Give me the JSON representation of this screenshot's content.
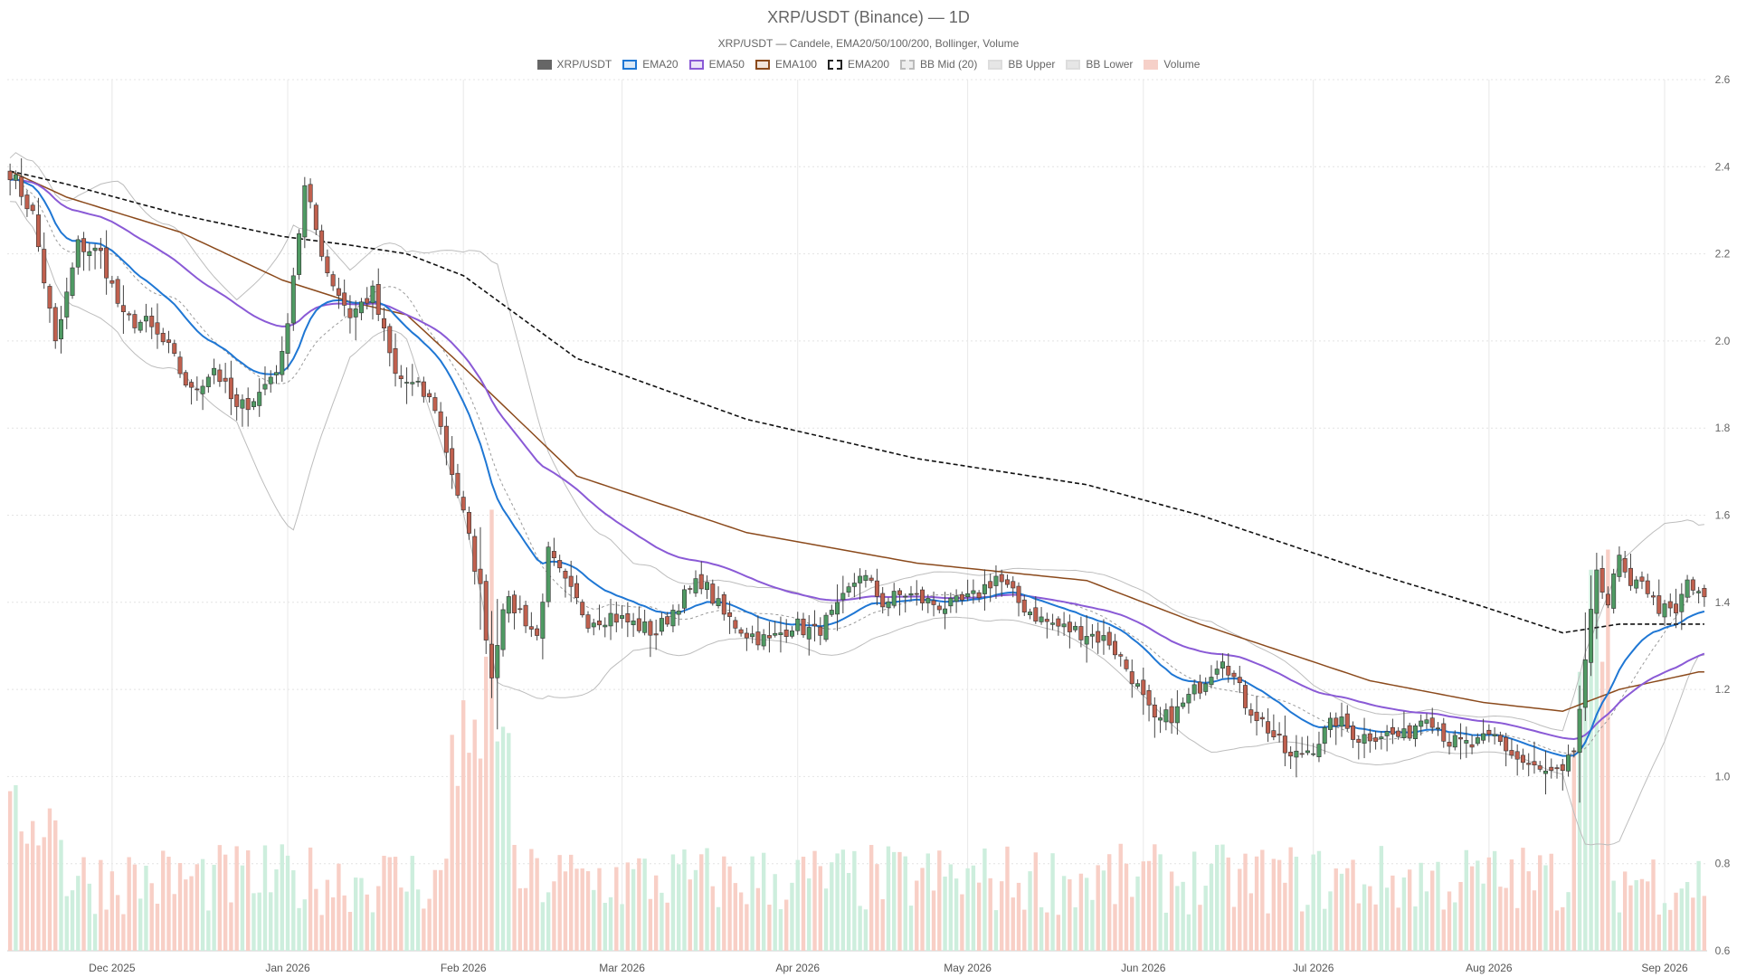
{
  "chart_data": {
    "type": "candlestick",
    "title": "XRP/USDT (Binance) — 1D",
    "subtitle": "XRP/USDT — Candele, EMA20/50/100/200, Bollinger, Volume",
    "legend": [
      {
        "label": "XRP/USDT",
        "color": "#666666",
        "fill": "#666666",
        "dash": false
      },
      {
        "label": "EMA20",
        "color": "#1f77d4",
        "fill": "#dbe9f7",
        "dash": false
      },
      {
        "label": "EMA50",
        "color": "#8a5ad6",
        "fill": "#ece3f8",
        "dash": false
      },
      {
        "label": "EMA100",
        "color": "#8b4a1c",
        "fill": "#f2e4da",
        "dash": false
      },
      {
        "label": "EMA200",
        "color": "#222222",
        "fill": "#ffffff",
        "dash": true
      },
      {
        "label": "BB Mid (20)",
        "color": "#bbbbbb",
        "fill": "#eeeeee",
        "dash": true
      },
      {
        "label": "BB Upper",
        "color": "#dddddd",
        "fill": "#e6e6e6",
        "dash": false
      },
      {
        "label": "BB Lower",
        "color": "#dddddd",
        "fill": "#e6e6e6",
        "dash": false
      },
      {
        "label": "Volume",
        "color": "#f6d0c8",
        "fill": "#f6d0c8",
        "dash": false
      }
    ],
    "x_ticks": [
      "Dec 2025",
      "Jan 2026",
      "Feb 2026",
      "Mar 2026",
      "Apr 2026",
      "May 2026",
      "Jun 2026",
      "Jul 2026",
      "Aug 2026",
      "Sep 2026"
    ],
    "x_tick_days": [
      18,
      49,
      80,
      108,
      139,
      169,
      200,
      230,
      261,
      292
    ],
    "y_ticks": [
      "2.6",
      "2.4",
      "2.2",
      "2.0",
      "1.8",
      "1.6",
      "1.4",
      "1.2",
      "1.0",
      "0.8",
      "0.6"
    ],
    "ylim": [
      0.6,
      2.6
    ],
    "grid": true,
    "candle_anchors": [
      [
        0,
        2.39
      ],
      [
        4,
        2.29
      ],
      [
        8,
        1.99
      ],
      [
        12,
        2.22
      ],
      [
        16,
        2.2
      ],
      [
        20,
        2.05
      ],
      [
        24,
        2.04
      ],
      [
        28,
        1.98
      ],
      [
        32,
        1.88
      ],
      [
        36,
        1.94
      ],
      [
        40,
        1.84
      ],
      [
        44,
        1.88
      ],
      [
        48,
        1.96
      ],
      [
        52,
        2.35
      ],
      [
        56,
        2.16
      ],
      [
        60,
        2.06
      ],
      [
        64,
        2.11
      ],
      [
        68,
        1.92
      ],
      [
        72,
        1.89
      ],
      [
        75,
        1.85
      ],
      [
        78,
        1.7
      ],
      [
        80,
        1.6
      ],
      [
        83,
        1.43
      ],
      [
        85,
        1.23
      ],
      [
        87,
        1.4
      ],
      [
        90,
        1.38
      ],
      [
        93,
        1.32
      ],
      [
        95,
        1.51
      ],
      [
        98,
        1.44
      ],
      [
        102,
        1.36
      ],
      [
        106,
        1.37
      ],
      [
        110,
        1.35
      ],
      [
        114,
        1.33
      ],
      [
        118,
        1.4
      ],
      [
        122,
        1.45
      ],
      [
        126,
        1.37
      ],
      [
        130,
        1.33
      ],
      [
        134,
        1.31
      ],
      [
        138,
        1.35
      ],
      [
        142,
        1.33
      ],
      [
        146,
        1.38
      ],
      [
        150,
        1.47
      ],
      [
        154,
        1.4
      ],
      [
        158,
        1.42
      ],
      [
        162,
        1.4
      ],
      [
        166,
        1.39
      ],
      [
        170,
        1.41
      ],
      [
        174,
        1.46
      ],
      [
        178,
        1.4
      ],
      [
        182,
        1.36
      ],
      [
        186,
        1.34
      ],
      [
        190,
        1.33
      ],
      [
        194,
        1.31
      ],
      [
        198,
        1.23
      ],
      [
        202,
        1.12
      ],
      [
        206,
        1.15
      ],
      [
        210,
        1.21
      ],
      [
        214,
        1.28
      ],
      [
        218,
        1.17
      ],
      [
        222,
        1.11
      ],
      [
        226,
        1.04
      ],
      [
        230,
        1.07
      ],
      [
        234,
        1.13
      ],
      [
        238,
        1.09
      ],
      [
        242,
        1.1
      ],
      [
        246,
        1.09
      ],
      [
        250,
        1.15
      ],
      [
        254,
        1.08
      ],
      [
        258,
        1.07
      ],
      [
        262,
        1.09
      ],
      [
        266,
        1.04
      ],
      [
        270,
        1.01
      ],
      [
        274,
        1.0
      ],
      [
        276,
        1.06
      ],
      [
        278,
        1.25
      ],
      [
        280,
        1.48
      ],
      [
        282,
        1.4
      ],
      [
        284,
        1.5
      ],
      [
        286,
        1.42
      ],
      [
        288,
        1.46
      ],
      [
        290,
        1.4
      ],
      [
        292,
        1.38
      ],
      [
        294,
        1.37
      ],
      [
        296,
        1.45
      ],
      [
        298,
        1.41
      ]
    ],
    "ema200_anchors": [
      [
        0,
        2.39
      ],
      [
        10,
        2.36
      ],
      [
        30,
        2.29
      ],
      [
        48,
        2.24
      ],
      [
        60,
        2.22
      ],
      [
        70,
        2.2
      ],
      [
        80,
        2.15
      ],
      [
        100,
        1.96
      ],
      [
        130,
        1.82
      ],
      [
        160,
        1.73
      ],
      [
        190,
        1.67
      ],
      [
        210,
        1.6
      ],
      [
        240,
        1.47
      ],
      [
        260,
        1.39
      ],
      [
        274,
        1.33
      ],
      [
        284,
        1.35
      ],
      [
        298,
        1.35
      ]
    ],
    "ema100_anchors": [
      [
        0,
        2.39
      ],
      [
        10,
        2.33
      ],
      [
        30,
        2.25
      ],
      [
        48,
        2.14
      ],
      [
        60,
        2.09
      ],
      [
        70,
        2.06
      ],
      [
        80,
        1.94
      ],
      [
        100,
        1.69
      ],
      [
        130,
        1.56
      ],
      [
        160,
        1.49
      ],
      [
        190,
        1.45
      ],
      [
        210,
        1.35
      ],
      [
        240,
        1.22
      ],
      [
        260,
        1.17
      ],
      [
        274,
        1.15
      ],
      [
        284,
        1.2
      ],
      [
        298,
        1.24
      ]
    ],
    "bb_width_anchors": [
      [
        0,
        0.05
      ],
      [
        20,
        0.18
      ],
      [
        40,
        0.14
      ],
      [
        50,
        0.35
      ],
      [
        60,
        0.1
      ],
      [
        70,
        0.1
      ],
      [
        80,
        0.3
      ],
      [
        86,
        0.48
      ],
      [
        95,
        0.28
      ],
      [
        110,
        0.1
      ],
      [
        130,
        0.06
      ],
      [
        150,
        0.06
      ],
      [
        170,
        0.05
      ],
      [
        185,
        0.07
      ],
      [
        200,
        0.12
      ],
      [
        212,
        0.15
      ],
      [
        230,
        0.07
      ],
      [
        260,
        0.04
      ],
      [
        274,
        0.05
      ],
      [
        278,
        0.22
      ],
      [
        284,
        0.32
      ],
      [
        292,
        0.25
      ],
      [
        298,
        0.15
      ]
    ],
    "volume_ylim": [
      0,
      1.9
    ]
  }
}
